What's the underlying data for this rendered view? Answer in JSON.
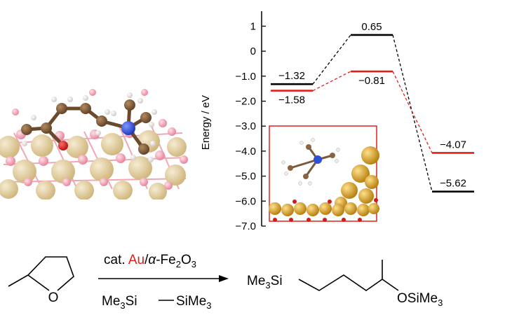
{
  "chart_data": {
    "type": "energy-profile",
    "ylabel": "Energy / eV",
    "ylim": [
      -7.0,
      1.6
    ],
    "yticks": [
      {
        "v": 1,
        "label": "1"
      },
      {
        "v": 0,
        "label": "0"
      },
      {
        "v": -1,
        "label": "−1.0"
      },
      {
        "v": -2,
        "label": "−2.0"
      },
      {
        "v": -3,
        "label": "−3.0"
      },
      {
        "v": -4,
        "label": "−4.0"
      },
      {
        "v": -5,
        "label": "−5.0"
      },
      {
        "v": -6,
        "label": "−6.0"
      },
      {
        "v": -7,
        "label": "−7.0"
      }
    ],
    "series": [
      {
        "color": "#000000",
        "levels": [
          {
            "value": -1.32,
            "label": "−1.32"
          },
          {
            "value": 0.65,
            "label": "0.65"
          },
          {
            "value": -5.62,
            "label": "−5.62"
          }
        ]
      },
      {
        "color": "#e0201a",
        "levels": [
          {
            "value": -1.58,
            "label": "−1.58"
          },
          {
            "value": -0.81,
            "label": "−0.81"
          },
          {
            "value": -4.07,
            "label": "−4.07"
          }
        ]
      }
    ]
  },
  "reaction": {
    "catalyst_prefix": "cat. ",
    "catalyst_metal": "Au",
    "catalyst_sep": "/",
    "catalyst_alpha": "α",
    "catalyst_support": "-Fe",
    "catalyst_sub1": "2",
    "catalyst_o": "O",
    "catalyst_sub2": "3",
    "reagent_left": "Me",
    "reagent_left_sub": "3",
    "reagent_left_el": "Si",
    "reagent_right": "SiMe",
    "reagent_right_sub": "3",
    "reactant_o": "O",
    "product_left": "Me",
    "product_left_sub": "3",
    "product_left_el": "Si",
    "product_right": "OSiMe",
    "product_right_sub": "3"
  },
  "colors": {
    "accent_red": "#e0201a",
    "au_gold": "#d4a017",
    "fe_tan": "#d9c28f",
    "oxygen_pink": "#f2a0b0",
    "carbon_brown": "#7a5a3a",
    "nitrogen_blue": "#2d4fd6"
  }
}
